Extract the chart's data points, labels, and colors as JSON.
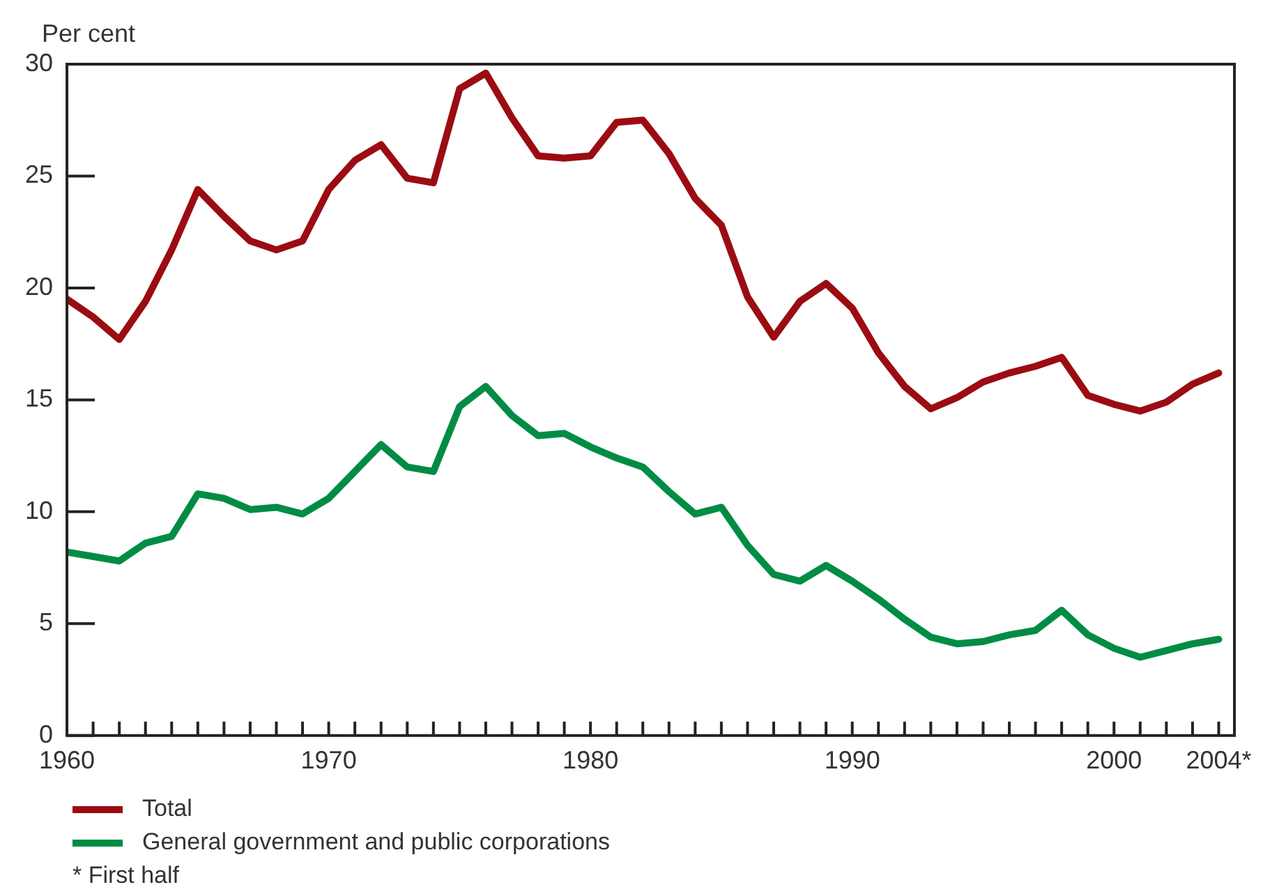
{
  "chart_data": {
    "type": "line",
    "ylabel": "Per cent",
    "x": [
      1960,
      1961,
      1962,
      1963,
      1964,
      1965,
      1966,
      1967,
      1968,
      1969,
      1970,
      1971,
      1972,
      1973,
      1974,
      1975,
      1976,
      1977,
      1978,
      1979,
      1980,
      1981,
      1982,
      1983,
      1984,
      1985,
      1986,
      1987,
      1988,
      1989,
      1990,
      1991,
      1992,
      1993,
      1994,
      1995,
      1996,
      1997,
      1998,
      1999,
      2000,
      2001,
      2002,
      2003,
      2004
    ],
    "series": [
      {
        "name": "Total",
        "color": "#9b0c12",
        "values": [
          19.5,
          18.7,
          17.7,
          19.4,
          21.7,
          24.4,
          23.2,
          22.1,
          21.7,
          22.1,
          24.4,
          25.7,
          26.4,
          24.9,
          24.7,
          28.9,
          29.6,
          27.6,
          25.9,
          25.8,
          25.9,
          27.4,
          27.5,
          26.0,
          24.0,
          22.8,
          19.6,
          17.8,
          19.4,
          20.2,
          19.1,
          17.1,
          15.6,
          14.6,
          15.1,
          15.8,
          16.2,
          16.5,
          16.9,
          15.2,
          14.8,
          14.5,
          14.9,
          15.7,
          16.2
        ]
      },
      {
        "name": "General government and public corporations",
        "color": "#008c44",
        "values": [
          8.2,
          8.0,
          7.8,
          8.6,
          8.9,
          10.8,
          10.6,
          10.1,
          10.2,
          9.9,
          10.6,
          11.8,
          13.0,
          12.0,
          11.8,
          14.7,
          15.6,
          14.3,
          13.4,
          13.5,
          12.9,
          12.4,
          12.0,
          10.9,
          9.9,
          10.2,
          8.5,
          7.2,
          6.9,
          7.6,
          6.9,
          6.1,
          5.2,
          4.4,
          4.1,
          4.2,
          4.5,
          4.7,
          5.6,
          4.5,
          3.9,
          3.5,
          3.8,
          4.1,
          4.3
        ]
      }
    ],
    "xlim": [
      1960,
      2004.6
    ],
    "xticks": [
      1960,
      {
        "value": 1961,
        "label": null
      },
      {
        "value": 1962,
        "label": null
      },
      {
        "value": 1963,
        "label": null
      },
      {
        "value": 1964,
        "label": null
      },
      {
        "value": 1965,
        "label": null
      },
      {
        "value": 1966,
        "label": null
      },
      {
        "value": 1967,
        "label": null
      },
      {
        "value": 1968,
        "label": null
      },
      {
        "value": 1969,
        "label": null
      },
      1970,
      {
        "value": 1971,
        "label": null
      },
      {
        "value": 1972,
        "label": null
      },
      {
        "value": 1973,
        "label": null
      },
      {
        "value": 1974,
        "label": null
      },
      {
        "value": 1975,
        "label": null
      },
      {
        "value": 1976,
        "label": null
      },
      {
        "value": 1977,
        "label": null
      },
      {
        "value": 1978,
        "label": null
      },
      {
        "value": 1979,
        "label": null
      },
      1980,
      {
        "value": 1981,
        "label": null
      },
      {
        "value": 1982,
        "label": null
      },
      {
        "value": 1983,
        "label": null
      },
      {
        "value": 1984,
        "label": null
      },
      {
        "value": 1985,
        "label": null
      },
      {
        "value": 1986,
        "label": null
      },
      {
        "value": 1987,
        "label": null
      },
      {
        "value": 1988,
        "label": null
      },
      {
        "value": 1989,
        "label": null
      },
      1990,
      {
        "value": 1991,
        "label": null
      },
      {
        "value": 1992,
        "label": null
      },
      {
        "value": 1993,
        "label": null
      },
      {
        "value": 1994,
        "label": null
      },
      {
        "value": 1995,
        "label": null
      },
      {
        "value": 1996,
        "label": null
      },
      {
        "value": 1997,
        "label": null
      },
      {
        "value": 1998,
        "label": null
      },
      {
        "value": 1999,
        "label": null
      },
      2000,
      {
        "value": 2001,
        "label": null
      },
      {
        "value": 2002,
        "label": null
      },
      {
        "value": 2003,
        "label": null
      },
      {
        "value": 2004,
        "label": "2004*"
      }
    ],
    "ylim": [
      0,
      30
    ],
    "yticks": [
      0,
      5,
      10,
      15,
      20,
      25,
      30
    ],
    "grid": false,
    "legend": "bottom",
    "marker": "none",
    "line_style": "solid",
    "annotations": [
      "* First half"
    ]
  }
}
